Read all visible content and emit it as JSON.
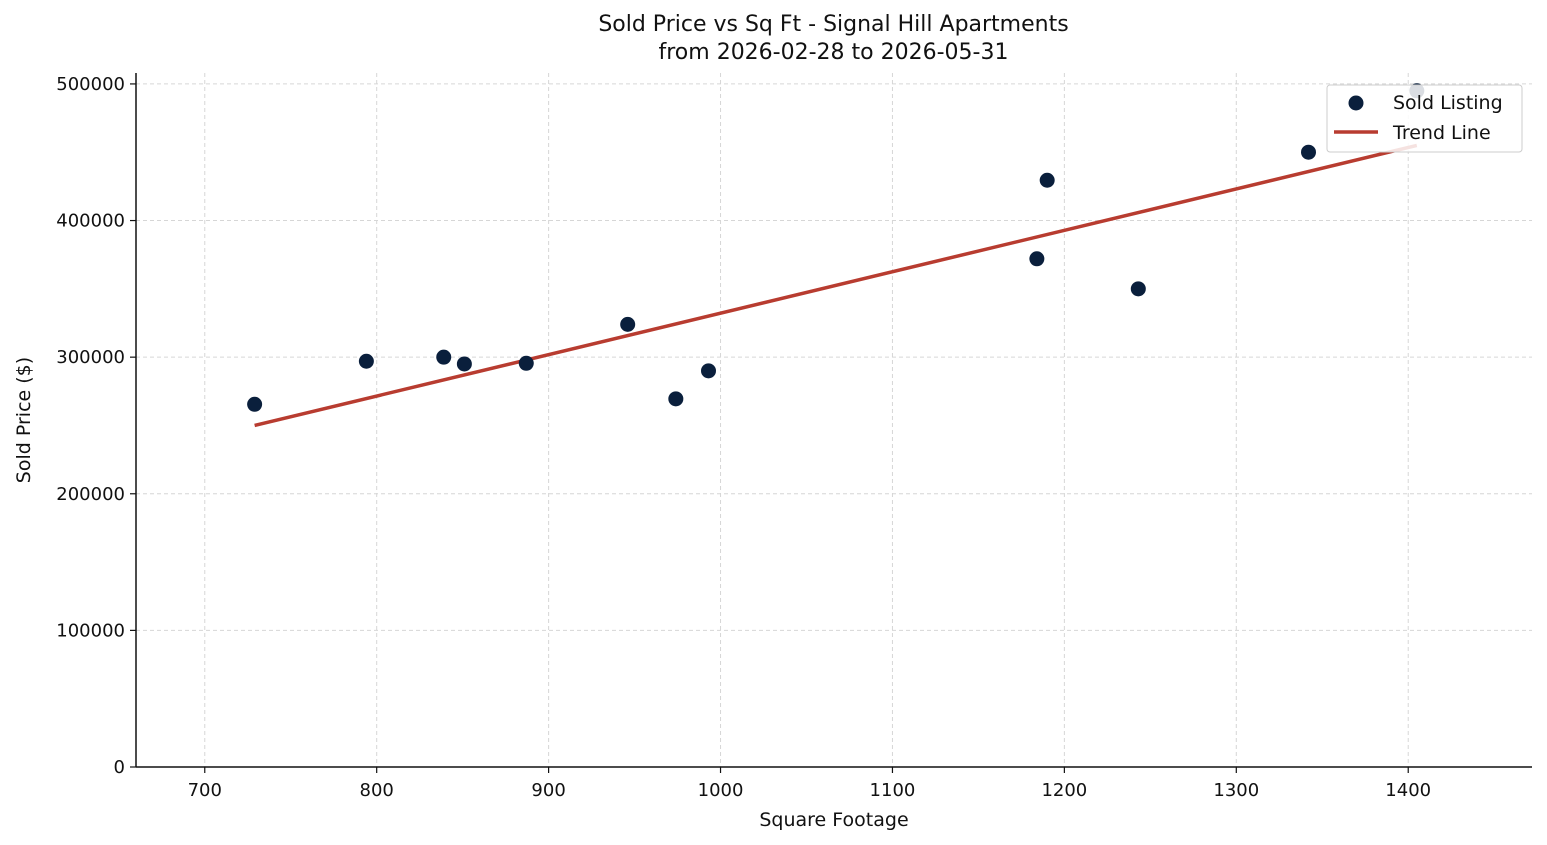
{
  "chart_data": {
    "type": "scatter",
    "title": "Sold Price vs Sq Ft - Signal Hill Apartments",
    "subtitle": "from 2026-02-28 to 2026-05-31",
    "xlabel": "Square Footage",
    "ylabel": "Sold Price ($)",
    "xlim": [
      660,
      1472
    ],
    "ylim": [
      0,
      508000
    ],
    "xticks": [
      700,
      800,
      900,
      1000,
      1100,
      1200,
      1300,
      1400
    ],
    "yticks": [
      0,
      100000,
      200000,
      300000,
      400000,
      500000
    ],
    "grid": true,
    "legend_position": "top-right",
    "series": [
      {
        "name": "Sold Listing",
        "kind": "scatter",
        "color": "#0a1f3c",
        "x": [
          729,
          794,
          839,
          851,
          887,
          946,
          974,
          993,
          1184,
          1190,
          1243,
          1342,
          1405
        ],
        "y": [
          265500,
          297000,
          300000,
          295000,
          295500,
          324000,
          269500,
          290000,
          372000,
          429500,
          350000,
          450000,
          495000
        ]
      },
      {
        "name": "Trend Line",
        "kind": "line",
        "color": "#b83c30",
        "x": [
          729,
          1405
        ],
        "y": [
          250000,
          455000
        ]
      }
    ]
  }
}
